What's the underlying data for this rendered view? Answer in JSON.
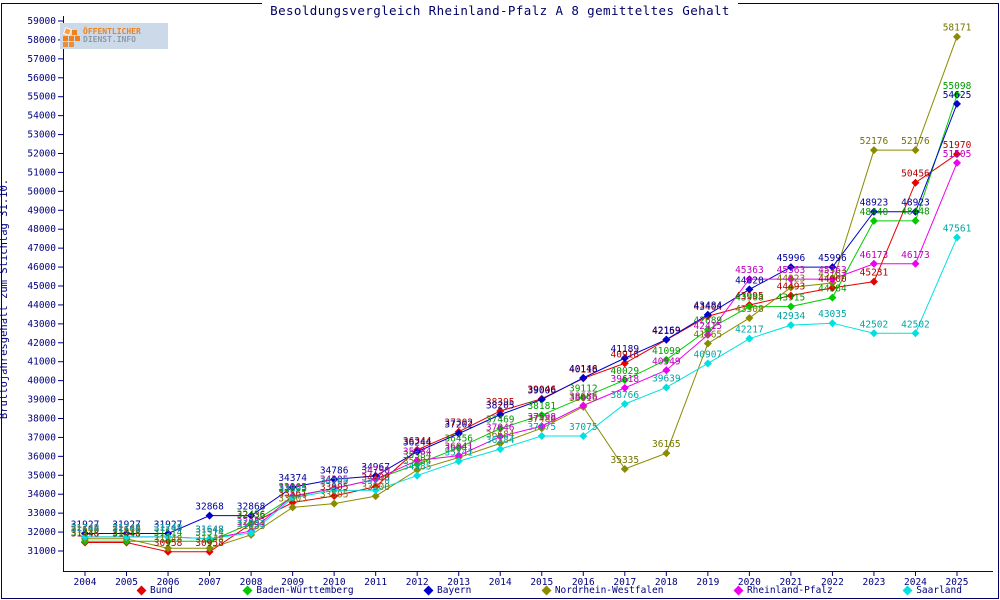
{
  "page": {
    "title": "Besoldungsvergleich Rheinland-Pfalz A 8 gemitteltes Gehalt",
    "border_color": "#000066",
    "background": "#ffffff"
  },
  "logo": {
    "line1": "ÖFFENTLICHER",
    "line2": "DIENST.INFO",
    "bg_color": "#ccd9e8",
    "orange": "#f08019",
    "gray": "#8d99a5"
  },
  "axis": {
    "color": "#000080",
    "tick_label_color": "#000080"
  },
  "chart_data": {
    "type": "line",
    "title": "Besoldungsvergleich Rheinland-Pfalz A 8 gemitteltes Gehalt",
    "xlabel": "",
    "ylabel": "Bruttojahresgehalt zum Stichtag 31.10.",
    "x": [
      2004,
      2005,
      2006,
      2007,
      2008,
      2009,
      2010,
      2011,
      2012,
      2013,
      2014,
      2015,
      2016,
      2017,
      2018,
      2019,
      2020,
      2021,
      2022,
      2023,
      2024,
      2025
    ],
    "ylim": [
      31000,
      59000
    ],
    "ytick_step": 1000,
    "grid": false,
    "marker": "diamond",
    "point_labels": true,
    "legend_position": "bottom",
    "series": [
      {
        "name": "Bund",
        "color": "#e60000",
        "label_color": "#b30000",
        "values": [
          31448,
          31448,
          30958,
          30958,
          32436,
          33561,
          33905,
          34400,
          36344,
          37302,
          38395,
          39046,
          40118,
          40918,
          42159,
          43404,
          43995,
          44493,
          44900,
          45231,
          50456,
          51970
        ]
      },
      {
        "name": "Baden-Württemberg",
        "color": "#00cc00",
        "label_color": "#009900",
        "values": [
          31514,
          31514,
          31514,
          31514,
          32456,
          33865,
          34305,
          34790,
          35584,
          36456,
          37469,
          38181,
          39112,
          40029,
          41099,
          42689,
          43908,
          43915,
          44384,
          48440,
          48448,
          55098
        ]
      },
      {
        "name": "Bayern",
        "color": "#0000cc",
        "label_color": "#000099",
        "values": [
          31927,
          31927,
          31927,
          32868,
          32868,
          34374,
          34786,
          34967,
          36244,
          37202,
          38205,
          39006,
          40146,
          41189,
          42169,
          43484,
          44820,
          45996,
          45996,
          48923,
          48923,
          54625
        ]
      },
      {
        "name": "Nordrhein-Westfalen",
        "color": "#8b8b00",
        "label_color": "#737300",
        "values": [
          31648,
          31648,
          31148,
          31148,
          31853,
          33303,
          33505,
          33900,
          35284,
          35941,
          36684,
          37488,
          38616,
          35335,
          36165,
          41965,
          43308,
          44923,
          45163,
          52176,
          52176,
          58171
        ]
      },
      {
        "name": "Rheinland-Pfalz",
        "color": "#ee00ee",
        "label_color": "#bb00bb",
        "values": [
          31748,
          31748,
          31748,
          31648,
          32053,
          33905,
          34305,
          34790,
          35784,
          36041,
          37046,
          37598,
          38686,
          39618,
          40549,
          42415,
          45363,
          45363,
          45363,
          46173,
          46173,
          51505
        ]
      },
      {
        "name": "Saarland",
        "color": "#00e0e0",
        "label_color": "#00a5a5",
        "values": [
          31748,
          31748,
          31748,
          31648,
          31953,
          33805,
          34205,
          34210,
          34985,
          35741,
          36384,
          37075,
          37075,
          38766,
          39639,
          40907,
          42217,
          42934,
          43035,
          42502,
          42502,
          47561
        ]
      }
    ]
  }
}
